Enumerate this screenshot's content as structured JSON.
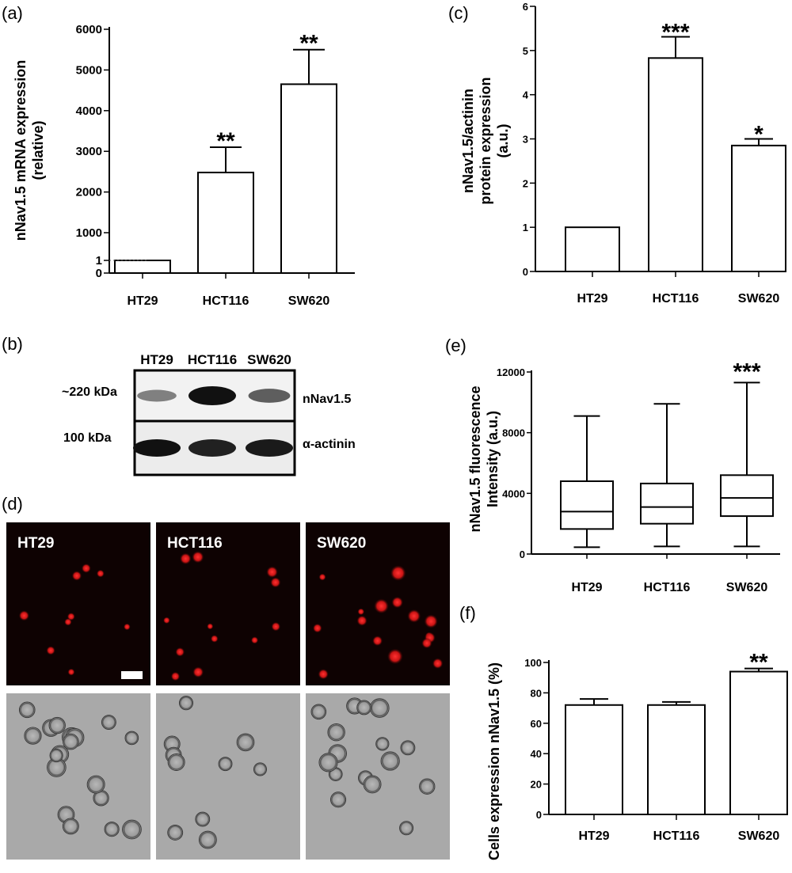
{
  "panels": {
    "a": {
      "letter": "(a)",
      "chart_data": {
        "type": "bar",
        "categories": [
          "HT29",
          "HCT116",
          "SW620"
        ],
        "values": [
          1,
          2480,
          4650
        ],
        "errors": [
          0,
          620,
          850
        ],
        "significance": [
          "",
          "**",
          "**"
        ],
        "ylabel_lines": [
          "nNav1.5 mRNA expression",
          "(relative)"
        ],
        "yticks": [
          "0",
          "1",
          "1000",
          "2000",
          "3000",
          "4000",
          "5000",
          "6000"
        ],
        "ylim": [
          0,
          6000
        ],
        "axis_break": true
      }
    },
    "b": {
      "letter": "(b)",
      "lanes": [
        "HT29",
        "HCT116",
        "SW620"
      ],
      "rows": [
        {
          "mw": "~220 kDa",
          "label": "nNav1.5",
          "band_intensity": [
            0.35,
            1.0,
            0.55
          ]
        },
        {
          "mw": "100 kDa",
          "label": "α-actinin",
          "band_intensity": [
            1.0,
            0.9,
            0.95
          ]
        }
      ]
    },
    "c": {
      "letter": "(c)",
      "chart_data": {
        "type": "bar",
        "categories": [
          "HT29",
          "HCT116",
          "SW620"
        ],
        "values": [
          1.0,
          4.83,
          2.85
        ],
        "errors": [
          0,
          0.48,
          0.15
        ],
        "significance": [
          "",
          "***",
          "*"
        ],
        "ylabel_lines": [
          "nNav1.5/actinin",
          "protein expression",
          "(a.u.)"
        ],
        "yticks": [
          "0",
          "1",
          "2",
          "3",
          "4",
          "5",
          "6"
        ],
        "ylim": [
          0,
          6
        ]
      }
    },
    "d": {
      "letter": "(d)",
      "labels": [
        "HT29",
        "HCT116",
        "SW620"
      ],
      "rows": [
        "fluorescence",
        "phase-contrast"
      ],
      "scale_bar": true
    },
    "e": {
      "letter": "(e)",
      "chart_data": {
        "type": "box",
        "categories": [
          "HT29",
          "HCT116",
          "SW620"
        ],
        "boxes": [
          {
            "min": 450,
            "q1": 1650,
            "median": 2800,
            "q3": 4800,
            "max": 9100
          },
          {
            "min": 500,
            "q1": 2000,
            "median": 3100,
            "q3": 4650,
            "max": 9900
          },
          {
            "min": 500,
            "q1": 2500,
            "median": 3700,
            "q3": 5200,
            "max": 11300
          }
        ],
        "significance": [
          "",
          "",
          "***"
        ],
        "ylabel_lines": [
          "nNav1.5 fluorescence",
          "Intensity (a.u.)"
        ],
        "yticks": [
          "0",
          "4000",
          "8000",
          "12000"
        ],
        "ylim": [
          0,
          12000
        ]
      }
    },
    "f": {
      "letter": "(f)",
      "chart_data": {
        "type": "bar",
        "categories": [
          "HT29",
          "HCT116",
          "SW620"
        ],
        "values": [
          72,
          72,
          94
        ],
        "errors": [
          4,
          2,
          2
        ],
        "significance": [
          "",
          "",
          "**"
        ],
        "ylabel_lines": [
          "Cells expression nNav1.5 (%)"
        ],
        "yticks": [
          "0",
          "20",
          "40",
          "60",
          "80",
          "100"
        ],
        "ylim": [
          0,
          100
        ]
      }
    }
  },
  "colors": {
    "bar_fill": "#ffffff",
    "stroke": "#000000",
    "fluor_bg": "#0e0202",
    "fluor_spot": "#e01818",
    "phase_bg": "#a9a9a9"
  }
}
